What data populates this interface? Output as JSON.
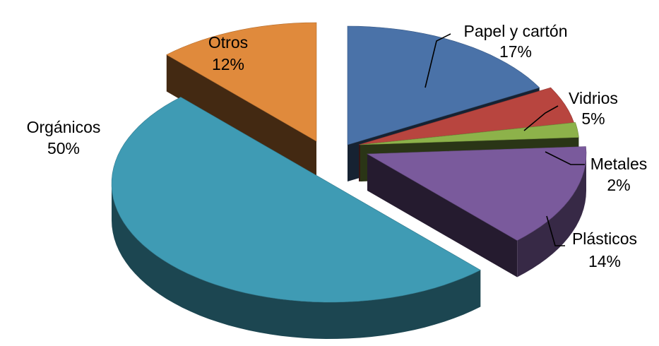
{
  "chart_data": {
    "type": "pie",
    "style": "3d-exploded",
    "slices": [
      {
        "label": "Papel y cartón",
        "value": 17,
        "value_label": "17%",
        "color": "#4a72a8"
      },
      {
        "label": "Vidrios",
        "value": 5,
        "value_label": "5%",
        "color": "#b8453f"
      },
      {
        "label": "Metales",
        "value": 2,
        "value_label": "2%",
        "color": "#8db24a"
      },
      {
        "label": "Plásticos",
        "value": 14,
        "value_label": "14%",
        "color": "#7a5a9c"
      },
      {
        "label": "Orgánicos",
        "value": 50,
        "value_label": "50%",
        "color": "#3f9bb4"
      },
      {
        "label": "Otros",
        "value": 12,
        "value_label": "12%",
        "color": "#e08a3c"
      }
    ]
  }
}
